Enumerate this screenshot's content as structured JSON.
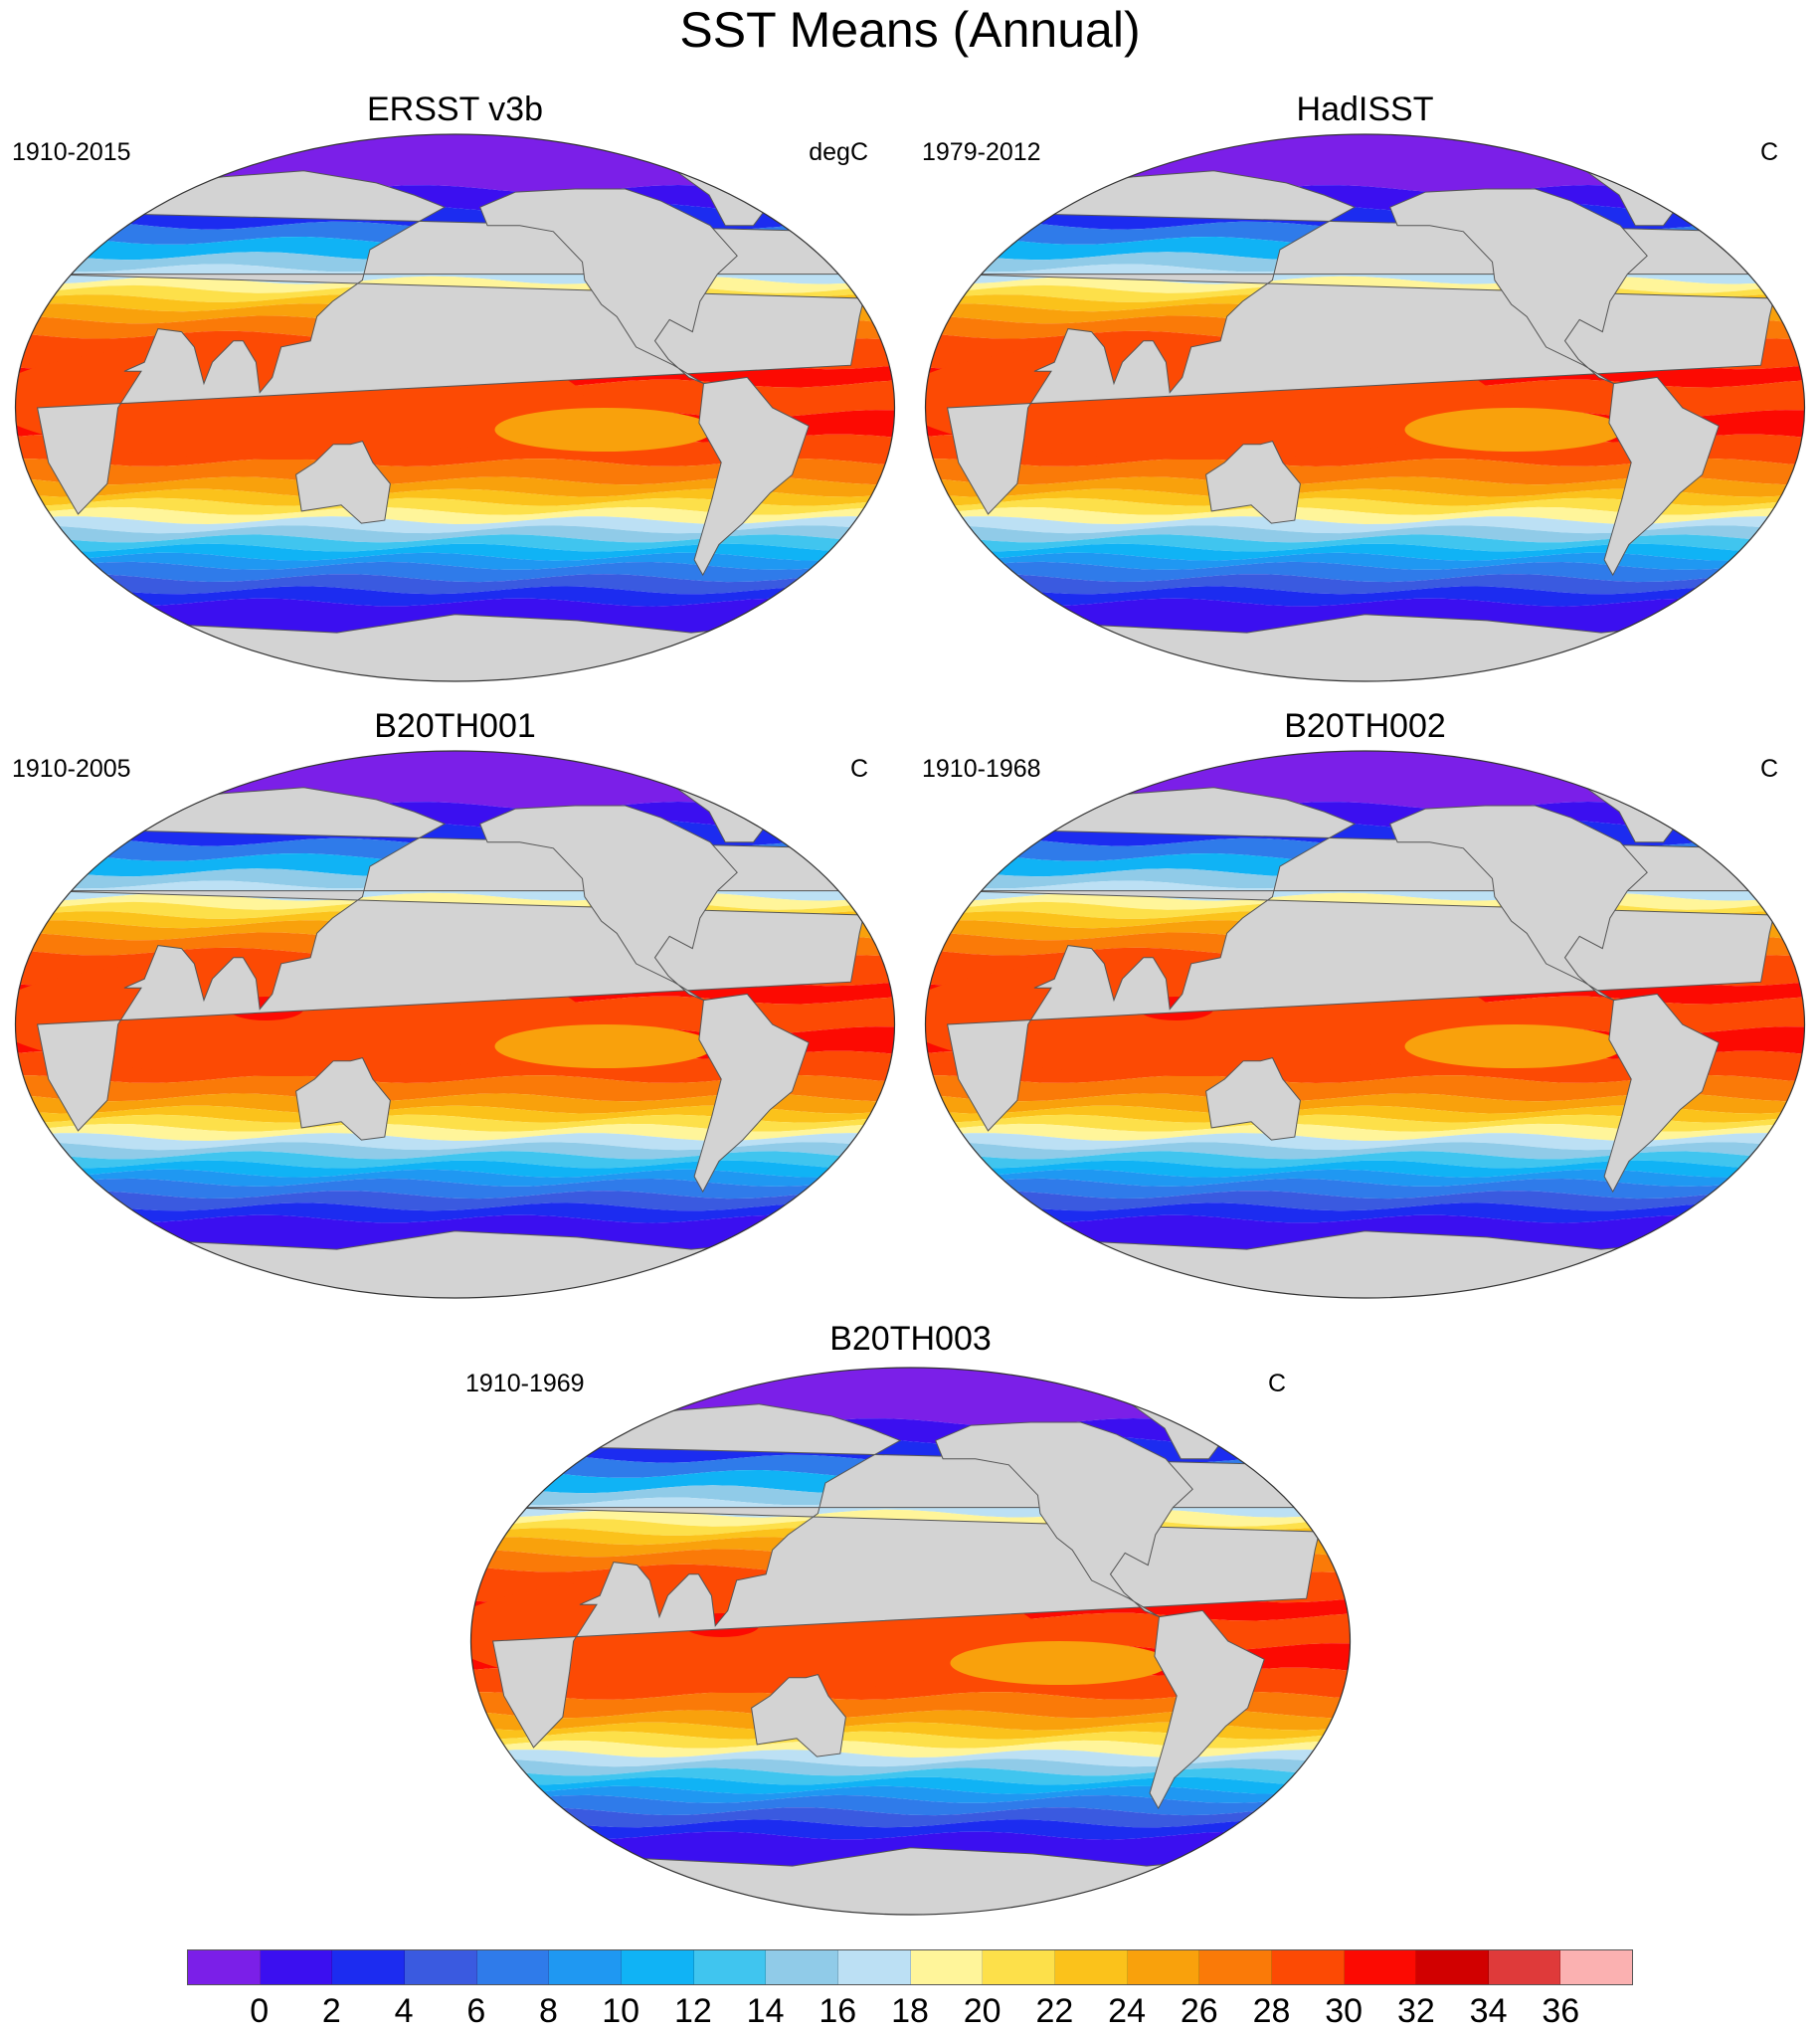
{
  "title": "SST Means (Annual)",
  "panels": [
    {
      "title": "ERSST v3b",
      "years": "1910-2015",
      "units": "degC"
    },
    {
      "title": "HadISST",
      "years": "1979-2012",
      "units": "C"
    },
    {
      "title": "B20TH001",
      "years": "1910-2005",
      "units": "C"
    },
    {
      "title": "B20TH002",
      "years": "1910-1968",
      "units": "C"
    },
    {
      "title": "B20TH003",
      "years": "1910-1969",
      "units": "C"
    }
  ],
  "colorbar": {
    "labels": [
      "0",
      "2",
      "4",
      "6",
      "8",
      "10",
      "12",
      "14",
      "16",
      "18",
      "20",
      "22",
      "24",
      "26",
      "28",
      "30",
      "32",
      "34",
      "36"
    ],
    "colors": [
      "#7b1fe8",
      "#3b0ff0",
      "#1c2cf0",
      "#3a5ae0",
      "#2f7bea",
      "#1f98f2",
      "#10b3f5",
      "#40c5ef",
      "#90cbe8",
      "#bce0f4",
      "#fff59a",
      "#fde04a",
      "#fbc21b",
      "#f9a10c",
      "#fa7a08",
      "#fc4a04",
      "#fc0a02",
      "#d10000",
      "#df3a3a",
      "#fbb1b1"
    ]
  },
  "chart_data": {
    "type": "heatmap",
    "title": "SST Means (Annual)",
    "variable": "Sea surface temperature annual mean",
    "units": [
      "degC",
      "C"
    ],
    "contour_levels": [
      0,
      2,
      4,
      6,
      8,
      10,
      12,
      14,
      16,
      18,
      20,
      22,
      24,
      26,
      28,
      30,
      32,
      34,
      36
    ],
    "land_color": "#d3d3d3",
    "missing_color": "#ffffff",
    "projection": "Robinson",
    "datasets": [
      "ERSST v3b",
      "HadISST",
      "B20TH001",
      "B20TH002",
      "B20TH003"
    ],
    "periods": [
      "1910-2015",
      "1979-2012",
      "1910-2005",
      "1910-1968",
      "1910-1969"
    ]
  }
}
